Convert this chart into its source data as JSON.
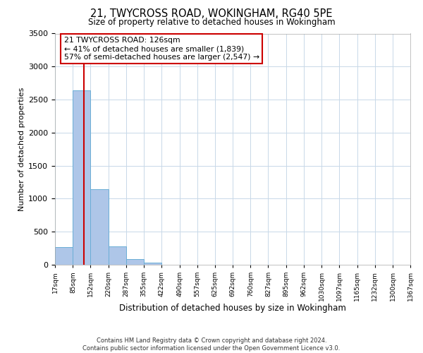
{
  "title": "21, TWYCROSS ROAD, WOKINGHAM, RG40 5PE",
  "subtitle": "Size of property relative to detached houses in Wokingham",
  "xlabel": "Distribution of detached houses by size in Wokingham",
  "ylabel": "Number of detached properties",
  "footer_lines": [
    "Contains HM Land Registry data © Crown copyright and database right 2024.",
    "Contains public sector information licensed under the Open Government Licence v3.0."
  ],
  "bin_edges": [
    17,
    85,
    152,
    220,
    287,
    355,
    422,
    490,
    557,
    625,
    692,
    760,
    827,
    895,
    962,
    1030,
    1097,
    1165,
    1232,
    1300,
    1367
  ],
  "bin_heights": [
    270,
    2640,
    1140,
    275,
    85,
    35,
    0,
    0,
    0,
    0,
    0,
    0,
    0,
    0,
    0,
    0,
    0,
    0,
    0,
    0
  ],
  "bar_color": "#aec6e8",
  "bar_edgecolor": "#6aaed6",
  "property_size": 126,
  "vline_color": "#cc0000",
  "annotation_title": "21 TWYCROSS ROAD: 126sqm",
  "annotation_line2": "← 41% of detached houses are smaller (1,839)",
  "annotation_line3": "57% of semi-detached houses are larger (2,547) →",
  "annotation_box_edgecolor": "#cc0000",
  "annotation_box_facecolor": "#ffffff",
  "ylim": [
    0,
    3500
  ],
  "yticks": [
    0,
    500,
    1000,
    1500,
    2000,
    2500,
    3000,
    3500
  ],
  "background_color": "#ffffff",
  "grid_color": "#c8d8e8",
  "tick_labels": [
    "17sqm",
    "85sqm",
    "152sqm",
    "220sqm",
    "287sqm",
    "355sqm",
    "422sqm",
    "490sqm",
    "557sqm",
    "625sqm",
    "692sqm",
    "760sqm",
    "827sqm",
    "895sqm",
    "962sqm",
    "1030sqm",
    "1097sqm",
    "1165sqm",
    "1232sqm",
    "1300sqm",
    "1367sqm"
  ]
}
